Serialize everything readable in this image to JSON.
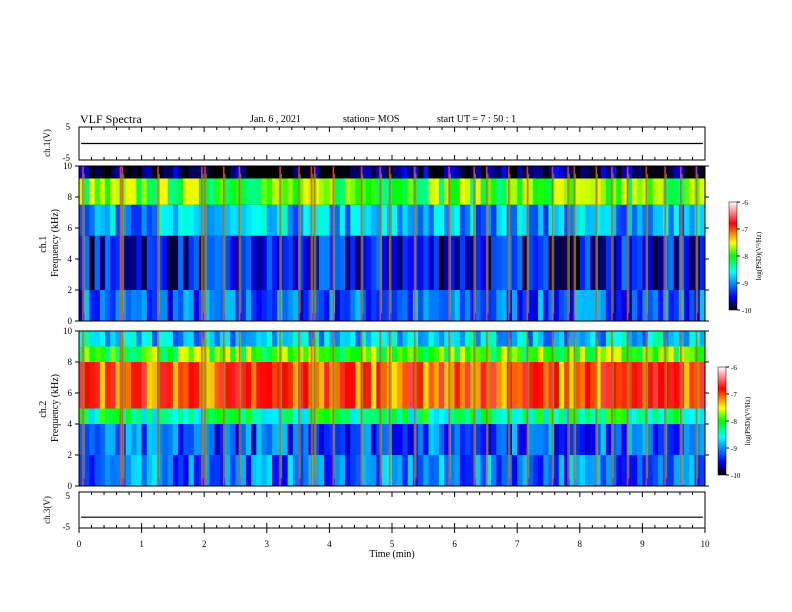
{
  "header": {
    "title": "VLF Spectra",
    "date": "Jan. 6 , 2021",
    "station": "station= MOS",
    "start_ut": "start  UT =   7 : 50 : 1"
  },
  "colors": {
    "scale": [
      "#000000",
      "#0000ff",
      "#00ffff",
      "#00ff00",
      "#ffff00",
      "#ff0000",
      "#ffffff"
    ]
  },
  "chart_data": [
    {
      "type": "line",
      "panel": "ch1-waveform",
      "ylabel": "ch.1(V)",
      "ylim": [
        -5,
        5
      ],
      "yticks": [
        "5",
        "-5"
      ],
      "x": [
        0,
        10
      ],
      "values": [
        0,
        0
      ]
    },
    {
      "type": "heatmap",
      "panel": "ch1-spectrogram",
      "ylabel": "ch.1\nFrequency (kHz)",
      "xlim": [
        0,
        10
      ],
      "ylim": [
        0,
        10
      ],
      "yticks": [
        "0",
        "2",
        "4",
        "6",
        "8",
        "10"
      ],
      "colorbar": {
        "label": "log(PSD)(V²/Hz)",
        "ticks": [
          "-6",
          "-7",
          "-8",
          "-9",
          "-10"
        ],
        "range": [
          -10,
          -6
        ]
      },
      "bands": [
        {
          "from": 0,
          "to": 2,
          "level": -9.2
        },
        {
          "from": 2,
          "to": 5.5,
          "level": -9.5
        },
        {
          "from": 5.5,
          "to": 7.5,
          "level": -8.9
        },
        {
          "from": 7.5,
          "to": 9.2,
          "level": -7.9
        },
        {
          "from": 9.2,
          "to": 10,
          "level": -9.9
        }
      ],
      "sferic_times": [
        0.05,
        0.65,
        0.68,
        1.25,
        1.95,
        2.0,
        2.3,
        2.55,
        3.2,
        3.5,
        3.7,
        3.75,
        4.05,
        4.5,
        4.8,
        4.95,
        5.35,
        5.9,
        6.3,
        6.5,
        6.85,
        7.15,
        7.55,
        7.8,
        7.9,
        8.25,
        8.5,
        8.75,
        9.05,
        9.35,
        9.6,
        9.85
      ]
    },
    {
      "type": "heatmap",
      "panel": "ch2-spectrogram",
      "ylabel": "ch.2\nFrequency (kHz)",
      "xlim": [
        0,
        10
      ],
      "ylim": [
        0,
        10
      ],
      "yticks": [
        "0",
        "2",
        "4",
        "6",
        "8",
        "10"
      ],
      "colorbar": {
        "label": "log(PSD)(V²/Hz)",
        "ticks": [
          "-6",
          "-7",
          "-8",
          "-9",
          "-10"
        ],
        "range": [
          -10,
          -6
        ]
      },
      "bands": [
        {
          "from": 0,
          "to": 2,
          "level": -9.1
        },
        {
          "from": 2,
          "to": 4,
          "level": -9.2
        },
        {
          "from": 4,
          "to": 5,
          "level": -8.3
        },
        {
          "from": 5,
          "to": 8,
          "level": -7.0
        },
        {
          "from": 8,
          "to": 9,
          "level": -7.9
        },
        {
          "from": 9,
          "to": 10,
          "level": -8.8
        }
      ],
      "sferic_times": [
        0.05,
        0.65,
        0.68,
        1.25,
        1.95,
        2.0,
        2.3,
        2.55,
        3.2,
        3.5,
        3.7,
        3.75,
        4.05,
        4.5,
        4.8,
        4.95,
        5.35,
        5.9,
        6.3,
        6.5,
        6.85,
        7.15,
        7.55,
        7.8,
        7.9,
        8.25,
        8.5,
        8.75,
        9.05,
        9.35,
        9.6,
        9.85
      ]
    },
    {
      "type": "line",
      "panel": "ch3-waveform",
      "ylabel": "ch.3(V)",
      "ylim": [
        -5,
        5
      ],
      "yticks": [
        "5",
        "-5"
      ],
      "x": [
        0,
        10
      ],
      "values": [
        -2,
        -2
      ]
    }
  ],
  "xaxis": {
    "label": "Time (min)",
    "ticks": [
      "0",
      "1",
      "2",
      "3",
      "4",
      "5",
      "6",
      "7",
      "8",
      "9",
      "10"
    ]
  }
}
